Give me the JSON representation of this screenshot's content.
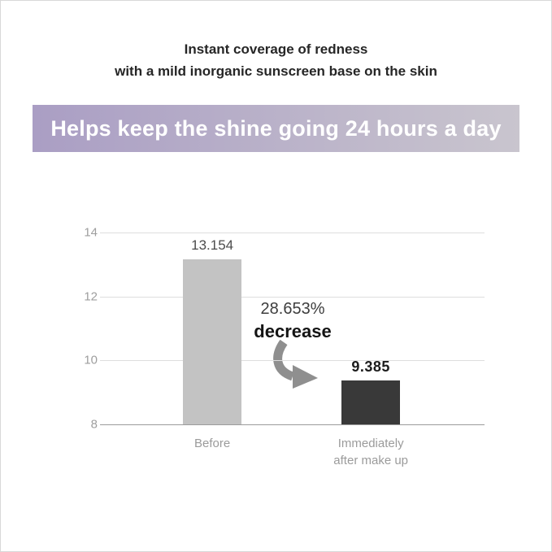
{
  "header": {
    "line1": "Instant coverage of redness",
    "line2": "with a mild inorganic sunscreen base on the skin"
  },
  "banner": {
    "text": "Helps keep the shine going 24 hours a day",
    "gradient_left": "#aa9ec4",
    "gradient_right": "#c9c5ce"
  },
  "chart_data": {
    "type": "bar",
    "categories": [
      "Before",
      "Immediately\nafter make up"
    ],
    "values": [
      13.154,
      9.385
    ],
    "value_labels": [
      "13.154",
      "9.385"
    ],
    "annotation": {
      "percent": "28.653%",
      "label": "decrease"
    },
    "ylim": [
      8,
      14
    ],
    "yticks": [
      8,
      10,
      12,
      14
    ],
    "bar_colors": [
      "#c3c3c3",
      "#393939"
    ],
    "grid": true,
    "title": "",
    "xlabel": "",
    "ylabel": ""
  }
}
